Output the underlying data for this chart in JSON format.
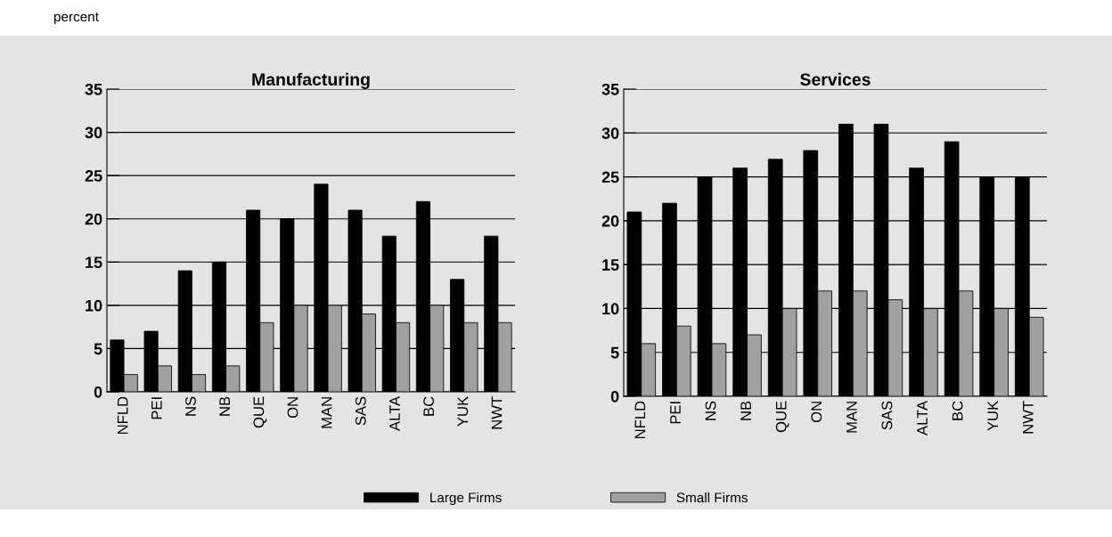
{
  "chart_data": [
    {
      "type": "bar",
      "title": "Manufacturing",
      "annotations": [
        "percent"
      ],
      "categories": [
        "NFLD",
        "PEI",
        "NS",
        "NB",
        "QUE",
        "ON",
        "MAN",
        "SAS",
        "ALTA",
        "BC",
        "YUK",
        "NWT"
      ],
      "series": [
        {
          "name": "Large Firms",
          "color": "#000000",
          "values": [
            6,
            7,
            14,
            15,
            21,
            20,
            24,
            21,
            18,
            22,
            13,
            18
          ]
        },
        {
          "name": "Small Firms",
          "color": "#a0a0a0",
          "values": [
            2,
            3,
            2,
            3,
            8,
            10,
            10,
            9,
            8,
            10,
            8,
            8
          ]
        }
      ],
      "ylim": [
        0,
        35
      ],
      "yticks": [
        0,
        5,
        10,
        15,
        20,
        25,
        30,
        35
      ],
      "grid": "y",
      "legend": "bottom"
    },
    {
      "type": "bar",
      "title": "Services",
      "categories": [
        "NFLD",
        "PEI",
        "NS",
        "NB",
        "QUE",
        "ON",
        "MAN",
        "SAS",
        "ALTA",
        "BC",
        "YUK",
        "NWT"
      ],
      "series": [
        {
          "name": "Large Firms",
          "color": "#000000",
          "values": [
            21,
            22,
            25,
            26,
            27,
            28,
            31,
            31,
            26,
            29,
            25,
            25
          ]
        },
        {
          "name": "Small Firms",
          "color": "#a0a0a0",
          "values": [
            6,
            8,
            6,
            7,
            10,
            12,
            12,
            11,
            10,
            12,
            10,
            9
          ]
        }
      ],
      "ylim": [
        0,
        35
      ],
      "yticks": [
        0,
        5,
        10,
        15,
        20,
        25,
        30,
        35
      ],
      "grid": "y"
    }
  ]
}
